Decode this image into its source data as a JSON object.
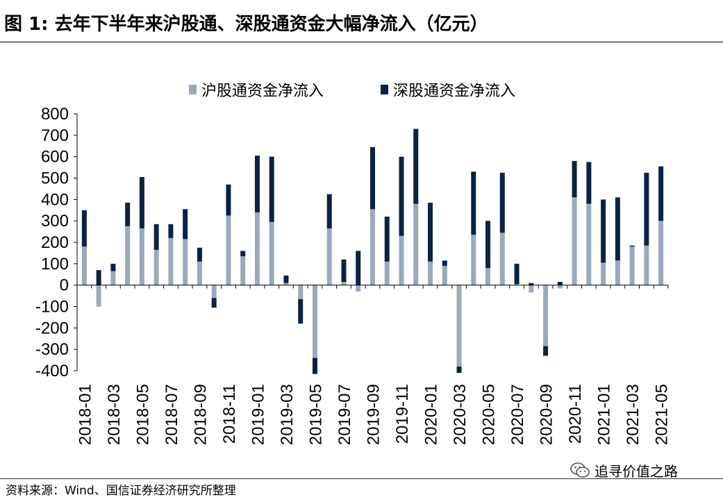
{
  "figure": {
    "title": "图 1:  去年下半年来沪股通、深股通资金大幅净流入（亿元）",
    "source": "资料来源：Wind、国信证券经济研究所整理",
    "watermark": "追寻价值之路"
  },
  "colors": {
    "sh": "#9aa9bc",
    "sz": "#0b2244"
  },
  "chart_data": {
    "type": "bar",
    "stacked": true,
    "ylim": [
      -400,
      800
    ],
    "yticks": [
      800,
      700,
      600,
      500,
      400,
      300,
      200,
      100,
      0,
      -100,
      -200,
      -300,
      -400
    ],
    "legend_position": "top",
    "categories": [
      "2018-01",
      "2018-02",
      "2018-03",
      "2018-04",
      "2018-05",
      "2018-06",
      "2018-07",
      "2018-08",
      "2018-09",
      "2018-10",
      "2018-11",
      "2018-12",
      "2019-01",
      "2019-02",
      "2019-03",
      "2019-04",
      "2019-05",
      "2019-06",
      "2019-07",
      "2019-08",
      "2019-09",
      "2019-10",
      "2019-11",
      "2019-12",
      "2020-01",
      "2020-02",
      "2020-03",
      "2020-04",
      "2020-05",
      "2020-06",
      "2020-07",
      "2020-08",
      "2020-09",
      "2020-10",
      "2020-11",
      "2020-12",
      "2021-01",
      "2021-02",
      "2021-03",
      "2021-04",
      "2021-05"
    ],
    "xtick_labels": [
      "2018-01",
      "2018-03",
      "2018-05",
      "2018-07",
      "2018-09",
      "2018-11",
      "2019-01",
      "2019-03",
      "2019-05",
      "2019-07",
      "2019-09",
      "2019-11",
      "2020-01",
      "2020-03",
      "2020-05",
      "2020-07",
      "2020-09",
      "2020-11",
      "2021-01",
      "2021-03",
      "2021-05"
    ],
    "series": [
      {
        "name": "沪股通资金净流入",
        "values": [
          180,
          -100,
          65,
          275,
          265,
          165,
          220,
          215,
          110,
          -60,
          325,
          135,
          340,
          295,
          10,
          -65,
          -340,
          265,
          15,
          -30,
          355,
          110,
          230,
          380,
          110,
          90,
          -380,
          235,
          80,
          245,
          5,
          -35,
          -285,
          -15,
          410,
          380,
          105,
          115,
          180,
          185,
          300
        ]
      },
      {
        "name": "深股通资金净流入",
        "values": [
          170,
          70,
          35,
          110,
          240,
          120,
          65,
          140,
          65,
          -45,
          145,
          25,
          265,
          305,
          35,
          -115,
          -75,
          160,
          105,
          160,
          290,
          210,
          370,
          350,
          275,
          25,
          -30,
          295,
          220,
          280,
          95,
          10,
          -45,
          15,
          170,
          195,
          295,
          295,
          5,
          340,
          255
        ]
      }
    ]
  }
}
